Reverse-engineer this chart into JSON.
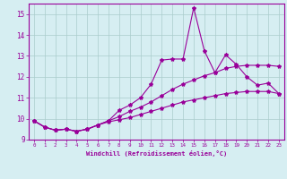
{
  "xlabel": "Windchill (Refroidissement éolien,°C)",
  "bg_color": "#d6eef2",
  "line_color": "#990099",
  "grid_color": "#aacccc",
  "xlim": [
    -0.5,
    23.5
  ],
  "ylim": [
    9.0,
    15.5
  ],
  "yticks": [
    9,
    10,
    11,
    12,
    13,
    14,
    15
  ],
  "xticks": [
    0,
    1,
    2,
    3,
    4,
    5,
    6,
    7,
    8,
    9,
    10,
    11,
    12,
    13,
    14,
    15,
    16,
    17,
    18,
    19,
    20,
    21,
    22,
    23
  ],
  "series1_x": [
    0,
    1,
    2,
    3,
    4,
    5,
    6,
    7,
    8,
    9,
    10,
    11,
    12,
    13,
    14,
    15,
    16,
    17,
    18,
    19,
    20,
    21,
    22,
    23
  ],
  "series1_y": [
    9.9,
    9.6,
    9.45,
    9.5,
    9.4,
    9.5,
    9.7,
    9.9,
    10.4,
    10.65,
    11.0,
    11.65,
    12.8,
    12.85,
    12.85,
    15.3,
    13.25,
    12.2,
    13.05,
    12.6,
    12.0,
    11.6,
    11.7,
    11.2
  ],
  "series2_x": [
    0,
    1,
    2,
    3,
    4,
    5,
    6,
    7,
    8,
    9,
    10,
    11,
    12,
    13,
    14,
    15,
    16,
    17,
    18,
    19,
    20,
    21,
    22,
    23
  ],
  "series2_y": [
    9.9,
    9.6,
    9.45,
    9.5,
    9.4,
    9.5,
    9.7,
    9.9,
    10.1,
    10.35,
    10.55,
    10.8,
    11.1,
    11.4,
    11.65,
    11.85,
    12.05,
    12.2,
    12.4,
    12.5,
    12.55,
    12.55,
    12.55,
    12.5
  ],
  "series3_x": [
    0,
    1,
    2,
    3,
    4,
    5,
    6,
    7,
    8,
    9,
    10,
    11,
    12,
    13,
    14,
    15,
    16,
    17,
    18,
    19,
    20,
    21,
    22,
    23
  ],
  "series3_y": [
    9.9,
    9.6,
    9.45,
    9.5,
    9.4,
    9.5,
    9.7,
    9.85,
    9.95,
    10.05,
    10.2,
    10.35,
    10.5,
    10.65,
    10.8,
    10.9,
    11.0,
    11.1,
    11.2,
    11.25,
    11.3,
    11.3,
    11.3,
    11.2
  ],
  "marker": "*",
  "markersize": 3,
  "linewidth": 0.8
}
